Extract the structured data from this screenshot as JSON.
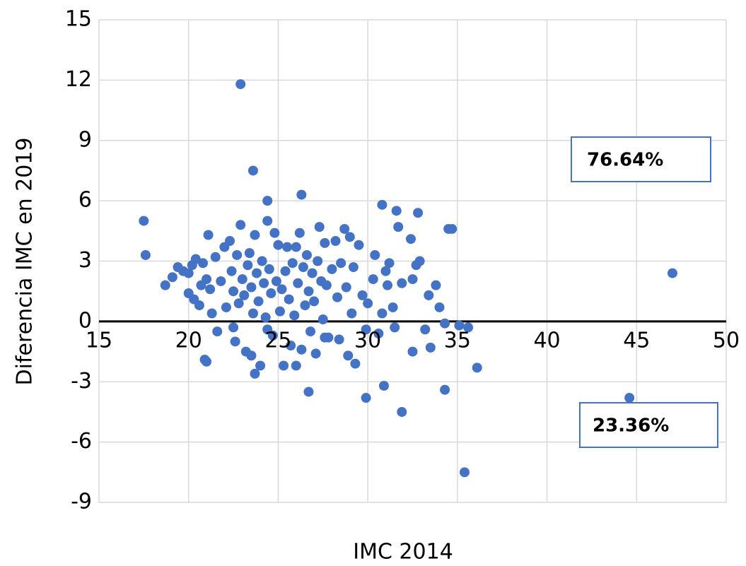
{
  "chart_data": {
    "type": "scatter",
    "x_label": "IMC 2014",
    "y_label": "Diferencia IMC en 2019",
    "annotations": [
      "76.64%",
      "23.36%"
    ],
    "color": "#4472c4",
    "grid": true,
    "xlim": [
      15,
      50
    ],
    "xticks": [
      15,
      20,
      25,
      30,
      35,
      40,
      45,
      50
    ],
    "ylim": [
      -9,
      15
    ],
    "yticks": [
      -9,
      -6,
      -3,
      0,
      3,
      6,
      9,
      12,
      15
    ],
    "x": [
      17.5,
      17.6,
      22.9,
      23.6,
      26.3,
      24.4,
      47.0,
      44.6,
      35.4,
      36.1,
      31.9,
      29.9,
      30.9,
      34.3,
      26.7,
      23.7,
      30.8,
      31.6,
      32.8,
      34.7,
      34.5,
      20.9,
      18.7,
      19.1,
      19.4,
      19.7,
      20.0,
      20.0,
      20.2,
      20.3,
      20.4,
      20.6,
      20.7,
      20.8,
      21.0,
      21.1,
      21.2,
      21.3,
      21.5,
      21.6,
      21.8,
      22.0,
      22.1,
      22.3,
      22.4,
      22.5,
      22.5,
      22.6,
      22.7,
      22.8,
      22.9,
      23.0,
      23.1,
      23.2,
      23.3,
      23.4,
      23.5,
      23.6,
      23.7,
      23.8,
      23.9,
      24.0,
      24.1,
      24.2,
      24.3,
      24.4,
      24.5,
      24.6,
      24.7,
      24.8,
      24.9,
      25.0,
      25.1,
      25.2,
      25.3,
      25.4,
      25.5,
      25.6,
      25.7,
      25.8,
      25.9,
      26.0,
      26.1,
      26.2,
      26.3,
      26.4,
      26.5,
      26.6,
      26.7,
      26.8,
      26.9,
      27.0,
      27.1,
      27.2,
      27.3,
      27.4,
      27.5,
      27.6,
      27.7,
      27.8,
      28.0,
      28.2,
      28.3,
      28.4,
      28.5,
      28.7,
      28.8,
      28.9,
      29.0,
      29.1,
      29.2,
      29.3,
      29.5,
      29.7,
      29.9,
      30.0,
      30.3,
      30.4,
      30.6,
      30.8,
      31.0,
      31.1,
      31.2,
      31.4,
      31.5,
      31.7,
      31.9,
      32.4,
      32.5,
      32.5,
      32.7,
      32.9,
      33.2,
      33.4,
      33.5,
      33.8,
      34.0,
      34.3,
      35.1,
      35.6,
      23.5,
      24.4,
      26.0,
      27.6,
      21.0
    ],
    "values": [
      5.0,
      3.3,
      11.8,
      7.5,
      6.3,
      6.0,
      2.4,
      -3.8,
      -7.5,
      -2.3,
      -4.5,
      -3.8,
      -3.2,
      -3.4,
      -3.5,
      -2.6,
      5.8,
      5.5,
      5.4,
      4.6,
      4.6,
      -1.9,
      1.8,
      2.2,
      2.7,
      2.5,
      2.4,
      1.4,
      2.8,
      1.1,
      3.1,
      0.8,
      1.8,
      2.9,
      2.1,
      4.3,
      1.6,
      0.4,
      3.2,
      -0.5,
      2.0,
      3.7,
      0.7,
      4.0,
      2.5,
      1.5,
      -0.3,
      -1.0,
      3.3,
      0.9,
      4.8,
      2.1,
      1.3,
      -1.5,
      2.8,
      3.4,
      1.7,
      0.4,
      4.3,
      2.4,
      1.0,
      -2.2,
      3.0,
      1.9,
      0.2,
      5.0,
      2.6,
      1.4,
      -0.7,
      4.4,
      2.0,
      3.8,
      0.5,
      1.6,
      -2.2,
      2.5,
      3.7,
      1.1,
      -1.2,
      2.9,
      0.3,
      3.7,
      1.9,
      4.4,
      -1.4,
      2.7,
      0.8,
      3.3,
      1.5,
      -0.5,
      2.4,
      1.0,
      -1.6,
      3.0,
      4.7,
      2.0,
      0.1,
      3.9,
      1.8,
      -0.8,
      2.6,
      4.0,
      1.2,
      -0.9,
      2.9,
      4.6,
      1.7,
      -1.7,
      4.2,
      0.4,
      2.7,
      -2.1,
      3.8,
      1.3,
      -0.4,
      0.9,
      2.1,
      3.3,
      -0.6,
      0.4,
      2.5,
      1.8,
      2.9,
      0.7,
      -0.3,
      4.7,
      1.9,
      4.1,
      2.1,
      -1.5,
      2.8,
      3.0,
      -0.4,
      1.3,
      -1.3,
      1.8,
      0.7,
      -0.1,
      -0.2,
      -0.3,
      -1.7,
      -0.4,
      -2.2,
      -0.8,
      -2.0
    ]
  }
}
